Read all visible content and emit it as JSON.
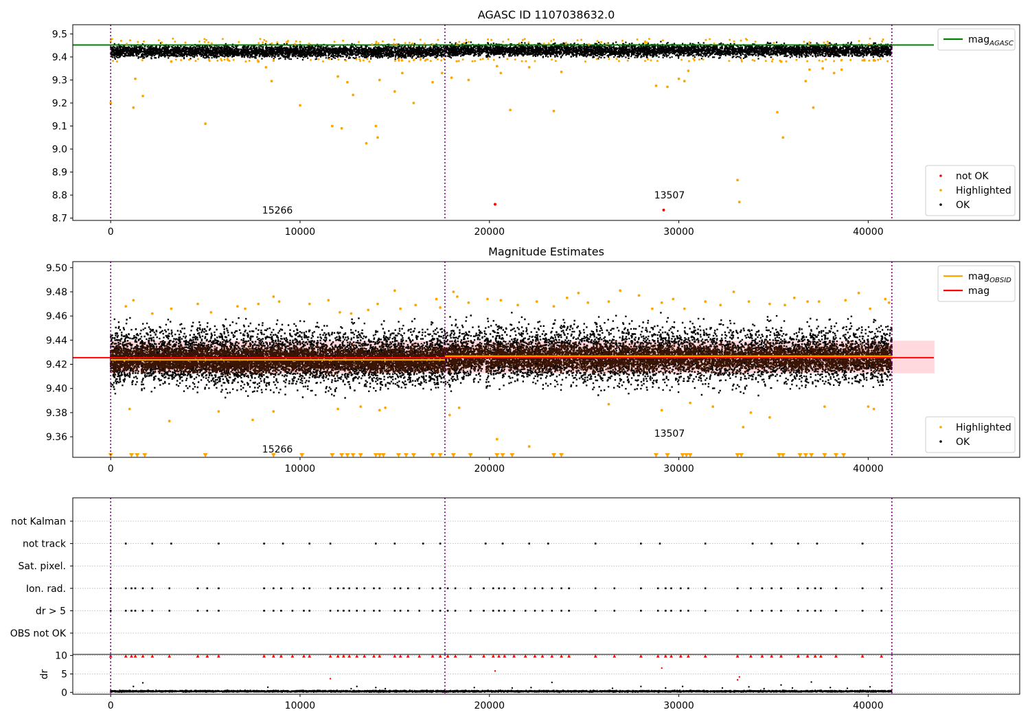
{
  "chart_data": [
    {
      "type": "scatter",
      "title": "AGASC ID 1107038632.0",
      "xlabel": "",
      "ylabel": "",
      "xlim": [
        -2000,
        48000
      ],
      "ylim": [
        8.69,
        9.54
      ],
      "xticks": [
        0,
        10000,
        20000,
        30000,
        40000
      ],
      "yticks": [
        8.7,
        8.8,
        8.9,
        9.0,
        9.1,
        9.2,
        9.3,
        9.4,
        9.5
      ],
      "ytick_labels": [
        "8.7",
        "8.8",
        "8.9",
        "9.0",
        "9.1",
        "9.2",
        "9.3",
        "9.4",
        "9.5"
      ],
      "hlines": [
        {
          "name": "mag_AGASC",
          "y": 9.452,
          "color": "#008000"
        }
      ],
      "vlines": [
        0,
        17650,
        41250
      ],
      "annotations": [
        {
          "text": "15266",
          "x": 8000,
          "y": 8.72
        },
        {
          "text": "13507",
          "x": 28700,
          "y": 8.785
        }
      ],
      "legends": [
        {
          "placement": "upper right",
          "entries": [
            {
              "label": "mag",
              "sub": "AGASC",
              "kind": "line",
              "color": "#008000"
            }
          ]
        },
        {
          "placement": "lower right",
          "entries": [
            {
              "label": "not OK",
              "kind": "dot",
              "color": "#ff0000"
            },
            {
              "label": "Highlighted",
              "kind": "dot",
              "color": "#ffa500"
            },
            {
              "label": "OK",
              "kind": "dot",
              "color": "#000000"
            }
          ]
        }
      ],
      "ok_band": {
        "color": "#000000",
        "segments": [
          {
            "x": [
              0,
              17650
            ],
            "y_low": 9.385,
            "y_high": 9.462
          },
          {
            "x": [
              17650,
              41250
            ],
            "y_low": 9.39,
            "y_high": 9.468
          }
        ]
      },
      "series": [
        {
          "name": "not OK",
          "color": "#ff0000",
          "x": [
            20300,
            29200
          ],
          "y": [
            8.76,
            8.735
          ]
        },
        {
          "name": "Highlighted",
          "color": "#ffa500",
          "x": [
            0,
            1200,
            1300,
            1700,
            5000,
            3200,
            7800,
            8200,
            8500,
            10000,
            11700,
            12000,
            12200,
            12500,
            12800,
            13500,
            14000,
            14200,
            14100,
            15000,
            15400,
            16000,
            17000,
            17500,
            18000,
            18900,
            20400,
            20600,
            21100,
            22100,
            23400,
            23800,
            28800,
            29400,
            30000,
            30300,
            30500,
            33100,
            33200,
            35200,
            35500,
            35400,
            36700,
            36900,
            37100,
            37600,
            38200,
            38600,
            39800,
            40300
          ],
          "y": [
            9.2,
            9.18,
            9.305,
            9.23,
            9.11,
            9.38,
            9.38,
            9.355,
            9.295,
            9.19,
            9.1,
            9.315,
            9.09,
            9.29,
            9.235,
            9.025,
            9.1,
            9.3,
            9.05,
            9.25,
            9.33,
            9.2,
            9.29,
            9.33,
            9.31,
            9.3,
            9.36,
            9.33,
            9.17,
            9.355,
            9.165,
            9.335,
            9.275,
            9.27,
            9.305,
            9.295,
            9.34,
            8.865,
            8.77,
            9.16,
            9.05,
            9.38,
            9.295,
            9.345,
            9.18,
            9.35,
            9.33,
            9.345,
            9.385,
            9.385
          ]
        }
      ]
    },
    {
      "type": "scatter",
      "title": "Magnitude Estimates",
      "xlabel": "",
      "ylabel": "",
      "xlim": [
        -2000,
        48000
      ],
      "ylim": [
        9.343,
        9.505
      ],
      "xticks": [
        0,
        10000,
        20000,
        30000,
        40000
      ],
      "yticks": [
        9.36,
        9.38,
        9.4,
        9.42,
        9.44,
        9.46,
        9.48,
        9.5
      ],
      "ytick_labels": [
        "9.36",
        "9.38",
        "9.40",
        "9.42",
        "9.44",
        "9.46",
        "9.48",
        "9.50"
      ],
      "hlines": [
        {
          "name": "mag",
          "y": 9.4255,
          "color": "#ff0000"
        }
      ],
      "steps": [
        {
          "name": "mag_OBSID",
          "color": "#ffa500",
          "segments": [
            {
              "x": [
                0,
                17650
              ],
              "y": 9.4237
            },
            {
              "x": [
                17650,
                41250
              ],
              "y": 9.4267
            }
          ]
        }
      ],
      "bands": [
        {
          "y_low": 9.4125,
          "y_high": 9.4395,
          "x": [
            0,
            43500
          ],
          "color": "#ffc0c8"
        }
      ],
      "vlines": [
        0,
        17650,
        41250
      ],
      "annotations": [
        {
          "text": "15266",
          "x": 8000,
          "y": 9.347
        },
        {
          "text": "13507",
          "x": 28700,
          "y": 9.36
        }
      ],
      "legends": [
        {
          "placement": "upper right",
          "entries": [
            {
              "label": "mag",
              "sub": "OBSID",
              "kind": "line",
              "color": "#ffa500"
            },
            {
              "label": "mag",
              "kind": "line",
              "color": "#ff0000"
            }
          ]
        },
        {
          "placement": "lower right",
          "entries": [
            {
              "label": "Highlighted",
              "kind": "dot",
              "color": "#ffa500"
            },
            {
              "label": "OK",
              "kind": "dot",
              "color": "#000000"
            }
          ]
        }
      ],
      "ok_band": {
        "color": "#000000",
        "segments": [
          {
            "x": [
              0,
              17650
            ],
            "y_low": 9.39,
            "y_high": 9.462
          },
          {
            "x": [
              17650,
              41250
            ],
            "y_low": 9.392,
            "y_high": 9.464
          }
        ]
      },
      "dense_band": {
        "color": "#3a1405",
        "segments": [
          {
            "x": [
              0,
              17650
            ],
            "y_low": 9.409,
            "y_high": 9.439
          },
          {
            "x": [
              17650,
              41250
            ],
            "y_low": 9.41,
            "y_high": 9.441
          }
        ]
      },
      "series": [
        {
          "name": "Highlighted",
          "color": "#ffa500",
          "x": [
            800,
            1200,
            2200,
            3200,
            4600,
            5300,
            6700,
            7100,
            7800,
            8600,
            8900,
            10500,
            11500,
            12100,
            12700,
            13600,
            14100,
            15000,
            15300,
            16100,
            17400,
            17200,
            18100,
            18300,
            18900,
            19900,
            20600,
            21500,
            22500,
            23400,
            24100,
            24700,
            25200,
            26300,
            26900,
            27900,
            28600,
            29100,
            29700,
            30300,
            31400,
            32200,
            32900,
            33700,
            34800,
            35600,
            36100,
            36800,
            37400,
            38800,
            39500,
            40100,
            40900,
            41100,
            1000,
            3100,
            5700,
            7500,
            8600,
            12000,
            13200,
            14200,
            14500,
            17900,
            18400,
            20400,
            22100,
            26300,
            29100,
            30600,
            31800,
            33400,
            33800,
            34800,
            37700,
            40000,
            40300
          ],
          "y": [
            9.468,
            9.473,
            9.462,
            9.466,
            9.47,
            9.463,
            9.468,
            9.466,
            9.47,
            9.476,
            9.472,
            9.47,
            9.473,
            9.463,
            9.462,
            9.465,
            9.47,
            9.481,
            9.466,
            9.469,
            9.467,
            9.474,
            9.48,
            9.476,
            9.471,
            9.474,
            9.473,
            9.469,
            9.472,
            9.468,
            9.475,
            9.479,
            9.471,
            9.472,
            9.481,
            9.477,
            9.466,
            9.471,
            9.474,
            9.466,
            9.472,
            9.469,
            9.48,
            9.472,
            9.47,
            9.469,
            9.475,
            9.472,
            9.472,
            9.473,
            9.479,
            9.466,
            9.474,
            9.471,
            9.383,
            9.373,
            9.381,
            9.374,
            9.381,
            9.383,
            9.385,
            9.382,
            9.384,
            9.378,
            9.384,
            9.358,
            9.352,
            9.387,
            9.382,
            9.388,
            9.385,
            9.368,
            9.38,
            9.376,
            9.385,
            9.385,
            9.383
          ]
        },
        {
          "name": "Highlighted (below axis)",
          "color": "#ffa500",
          "x": [
            0,
            1100,
            1400,
            1800,
            5000,
            8600,
            10100,
            11700,
            12200,
            12500,
            12800,
            13200,
            14000,
            14200,
            14400,
            15200,
            15600,
            16000,
            17000,
            17400,
            18100,
            19000,
            20400,
            20700,
            21200,
            23400,
            23800,
            28800,
            29400,
            30200,
            30400,
            30600,
            33100,
            33300,
            35300,
            35500,
            36400,
            36700,
            37000,
            37700,
            38300,
            38700
          ],
          "y": [
            9.3445,
            9.3445,
            9.3445,
            9.3445,
            9.3445,
            9.3445,
            9.3445,
            9.3445,
            9.3445,
            9.3445,
            9.3445,
            9.3445,
            9.3445,
            9.3445,
            9.3445,
            9.3445,
            9.3445,
            9.3445,
            9.3445,
            9.3445,
            9.3445,
            9.3445,
            9.3445,
            9.3445,
            9.3445,
            9.3445,
            9.3445,
            9.3445,
            9.3445,
            9.3445,
            9.3445,
            9.3445,
            9.3445,
            9.3445,
            9.3445,
            9.3445,
            9.3445,
            9.3445,
            9.3445,
            9.3445,
            9.3445,
            9.3445
          ]
        }
      ]
    },
    {
      "type": "scatter",
      "title": "",
      "xlabel": "",
      "ylabel": "",
      "xlim": [
        -2000,
        48000
      ],
      "categories": [
        "not Kalman",
        "not track",
        "Sat. pixel.",
        "Ion. rad.",
        "dr > 5",
        "OBS not OK"
      ],
      "vlines": [
        0,
        17650,
        41250
      ],
      "flags": [
        {
          "category": "not track",
          "x": [
            800,
            2200,
            3200,
            5700,
            8100,
            9100,
            10500,
            11600,
            14000,
            15000,
            16500,
            17400,
            19800,
            20700,
            22100,
            23100,
            25600,
            28000,
            29000,
            31400,
            33900,
            34900,
            36300,
            37300,
            39700
          ]
        },
        {
          "category": "Ion. rad.",
          "x": [
            0,
            800,
            1100,
            1300,
            1700,
            2200,
            3100,
            4600,
            5100,
            5700,
            8100,
            8600,
            9000,
            9600,
            10200,
            10500,
            11600,
            12000,
            12300,
            12600,
            13000,
            13400,
            13900,
            14200,
            15000,
            15300,
            15700,
            16300,
            17000,
            17400,
            17800,
            18200,
            19000,
            19700,
            20200,
            20500,
            20800,
            21300,
            21900,
            22400,
            22800,
            23300,
            23800,
            24200,
            25600,
            26600,
            28000,
            28900,
            29300,
            29600,
            30100,
            30500,
            31400,
            33100,
            33800,
            34400,
            34900,
            35400,
            36300,
            36800,
            37200,
            37500,
            38300,
            39700,
            40700
          ]
        },
        {
          "category": "dr > 5",
          "x": [
            0,
            800,
            1100,
            1300,
            1700,
            2200,
            3100,
            4600,
            5100,
            5700,
            8100,
            8600,
            9000,
            9600,
            10200,
            10500,
            11600,
            12000,
            12300,
            12600,
            13000,
            13400,
            13900,
            14200,
            15000,
            15300,
            15700,
            16300,
            17000,
            17400,
            17800,
            18200,
            19000,
            19700,
            20200,
            20500,
            20800,
            21300,
            21900,
            22400,
            22800,
            23300,
            23800,
            24200,
            25600,
            26600,
            28000,
            28900,
            29300,
            29600,
            30100,
            30500,
            31400,
            33100,
            33800,
            34400,
            34900,
            35400,
            36300,
            36800,
            37200,
            37500,
            38300,
            39700,
            40700
          ]
        }
      ]
    },
    {
      "type": "scatter",
      "title": "",
      "xlabel": "",
      "ylabel": "dr",
      "xlim": [
        -2000,
        48000
      ],
      "ylim": [
        -0.5,
        10.3
      ],
      "xticks": [
        0,
        10000,
        20000,
        30000,
        40000
      ],
      "yticks": [
        0,
        5,
        10
      ],
      "ytick_labels": [
        "0",
        "5",
        "10"
      ],
      "vlines": [
        0,
        17650,
        41250
      ],
      "clipped": {
        "name": "dr > 10",
        "color": "#ff0000",
        "y": 9.8,
        "x": [
          0,
          800,
          1100,
          1300,
          1700,
          2200,
          3100,
          4600,
          5100,
          5700,
          8100,
          8600,
          9000,
          9600,
          10200,
          10500,
          11600,
          12000,
          12300,
          12600,
          13000,
          13400,
          13900,
          14200,
          15000,
          15300,
          15700,
          16300,
          17000,
          17400,
          17800,
          18200,
          19000,
          19700,
          20200,
          20500,
          20800,
          21300,
          21900,
          22400,
          22800,
          23300,
          23800,
          24200,
          25600,
          26600,
          28000,
          28900,
          29300,
          29600,
          30100,
          30500,
          31400,
          33100,
          33800,
          34400,
          34900,
          35400,
          36300,
          36800,
          37200,
          37500,
          38300,
          39700,
          40700
        ]
      },
      "series": [
        {
          "name": "dr > 5",
          "color": "#ff0000",
          "x": [
            11600,
            20300,
            29100,
            33100,
            33200
          ],
          "y": [
            3.7,
            5.8,
            6.6,
            3.4,
            4.2
          ]
        },
        {
          "name": "dr",
          "color": "#000000",
          "x": [
            1200,
            1700,
            8300,
            12700,
            13000,
            14000,
            14500,
            19200,
            21200,
            22200,
            23300,
            26500,
            28000,
            29300,
            30200,
            32300,
            33700,
            34500,
            35400,
            36000,
            37000,
            38000,
            38900,
            40100
          ],
          "y": [
            1.6,
            2.6,
            1.4,
            1.0,
            1.6,
            1.3,
            1.0,
            1.3,
            1.2,
            1.3,
            2.7,
            1.1,
            1.6,
            1.2,
            1.6,
            1.2,
            1.5,
            1.0,
            2.0,
            1.2,
            2.8,
            1.3,
            1.1,
            1.5
          ]
        }
      ],
      "base_band": {
        "color": "#000000",
        "segments": [
          {
            "x": [
              0,
              41250
            ],
            "y_low": 0.0,
            "y_high": 0.6
          }
        ]
      }
    }
  ]
}
